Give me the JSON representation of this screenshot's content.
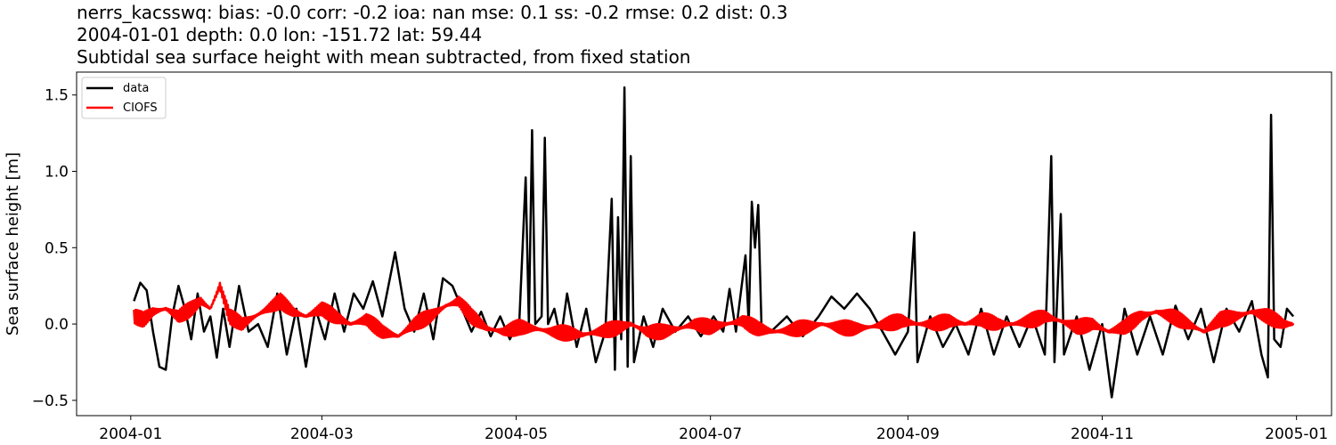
{
  "chart_data": {
    "type": "line",
    "title_lines": [
      "nerrs_kacsswq: bias: -0.0  corr: -0.2  ioa: nan  mse: 0.1  ss: -0.2  rmse: 0.2  dist: 0.3",
      "2004-01-01 depth: 0.0 lon: -151.72 lat: 59.44",
      "Subtidal sea surface height with mean subtracted, from fixed station"
    ],
    "xlabel": "",
    "ylabel": "Sea surface height [m]",
    "xlim": [
      "2003-12-15",
      "2005-01-12"
    ],
    "ylim": [
      -0.6,
      1.65
    ],
    "x_ticks": [
      "2004-01",
      "2004-03",
      "2004-05",
      "2004-07",
      "2004-09",
      "2004-11",
      "2005-01"
    ],
    "y_ticks": [
      {
        "value": -0.5,
        "label": "−0.5"
      },
      {
        "value": 0.0,
        "label": "0.0"
      },
      {
        "value": 0.5,
        "label": "0.5"
      },
      {
        "value": 1.0,
        "label": "1.0"
      },
      {
        "value": 1.5,
        "label": "1.5"
      }
    ],
    "grid": false,
    "legend_position": "top-left",
    "series": [
      {
        "name": "data",
        "color": "#000000",
        "points": [
          [
            "2004-01-02",
            0.15
          ],
          [
            "2004-01-04",
            0.27
          ],
          [
            "2004-01-06",
            0.22
          ],
          [
            "2004-01-08",
            -0.05
          ],
          [
            "2004-01-10",
            -0.28
          ],
          [
            "2004-01-12",
            -0.3
          ],
          [
            "2004-01-14",
            0.05
          ],
          [
            "2004-01-16",
            0.25
          ],
          [
            "2004-01-18",
            0.1
          ],
          [
            "2004-01-20",
            -0.1
          ],
          [
            "2004-01-22",
            0.2
          ],
          [
            "2004-01-24",
            -0.05
          ],
          [
            "2004-01-26",
            0.05
          ],
          [
            "2004-01-28",
            -0.22
          ],
          [
            "2004-01-30",
            0.1
          ],
          [
            "2004-02-01",
            -0.15
          ],
          [
            "2004-02-04",
            0.25
          ],
          [
            "2004-02-07",
            -0.05
          ],
          [
            "2004-02-10",
            0.0
          ],
          [
            "2004-02-13",
            -0.15
          ],
          [
            "2004-02-16",
            0.2
          ],
          [
            "2004-02-19",
            -0.2
          ],
          [
            "2004-02-22",
            0.1
          ],
          [
            "2004-02-25",
            -0.28
          ],
          [
            "2004-02-28",
            0.1
          ],
          [
            "2004-03-02",
            -0.1
          ],
          [
            "2004-03-05",
            0.2
          ],
          [
            "2004-03-08",
            -0.05
          ],
          [
            "2004-03-11",
            0.2
          ],
          [
            "2004-03-14",
            0.1
          ],
          [
            "2004-03-17",
            0.28
          ],
          [
            "2004-03-20",
            0.05
          ],
          [
            "2004-03-24",
            0.47
          ],
          [
            "2004-03-27",
            0.1
          ],
          [
            "2004-03-30",
            -0.05
          ],
          [
            "2004-04-02",
            0.2
          ],
          [
            "2004-04-05",
            -0.1
          ],
          [
            "2004-04-08",
            0.3
          ],
          [
            "2004-04-11",
            0.25
          ],
          [
            "2004-04-14",
            0.1
          ],
          [
            "2004-04-17",
            -0.05
          ],
          [
            "2004-04-20",
            0.08
          ],
          [
            "2004-04-23",
            -0.08
          ],
          [
            "2004-04-26",
            0.05
          ],
          [
            "2004-04-29",
            -0.1
          ],
          [
            "2004-05-02",
            0.02
          ],
          [
            "2004-05-04",
            0.96
          ],
          [
            "2004-05-05",
            0.0
          ],
          [
            "2004-05-06",
            1.27
          ],
          [
            "2004-05-07",
            0.0
          ],
          [
            "2004-05-09",
            0.05
          ],
          [
            "2004-05-10",
            1.22
          ],
          [
            "2004-05-11",
            0.0
          ],
          [
            "2004-05-13",
            0.1
          ],
          [
            "2004-05-15",
            -0.1
          ],
          [
            "2004-05-17",
            0.2
          ],
          [
            "2004-05-20",
            -0.15
          ],
          [
            "2004-05-23",
            0.1
          ],
          [
            "2004-05-26",
            -0.25
          ],
          [
            "2004-05-29",
            -0.05
          ],
          [
            "2004-05-31",
            0.82
          ],
          [
            "2004-06-01",
            -0.3
          ],
          [
            "2004-06-02",
            0.7
          ],
          [
            "2004-06-03",
            -0.1
          ],
          [
            "2004-06-04",
            1.55
          ],
          [
            "2004-06-05",
            -0.28
          ],
          [
            "2004-06-06",
            1.1
          ],
          [
            "2004-06-07",
            -0.25
          ],
          [
            "2004-06-10",
            0.05
          ],
          [
            "2004-06-13",
            -0.15
          ],
          [
            "2004-06-16",
            0.1
          ],
          [
            "2004-06-20",
            -0.05
          ],
          [
            "2004-06-24",
            0.05
          ],
          [
            "2004-06-28",
            -0.08
          ],
          [
            "2004-07-02",
            0.05
          ],
          [
            "2004-07-05",
            -0.05
          ],
          [
            "2004-07-07",
            0.23
          ],
          [
            "2004-07-09",
            -0.05
          ],
          [
            "2004-07-12",
            0.45
          ],
          [
            "2004-07-13",
            0.0
          ],
          [
            "2004-07-14",
            0.8
          ],
          [
            "2004-07-15",
            0.5
          ],
          [
            "2004-07-16",
            0.78
          ],
          [
            "2004-07-17",
            0.0
          ],
          [
            "2004-07-20",
            -0.05
          ],
          [
            "2004-07-25",
            0.05
          ],
          [
            "2004-07-30",
            -0.08
          ],
          [
            "2004-08-04",
            0.05
          ],
          [
            "2004-08-08",
            0.18
          ],
          [
            "2004-08-12",
            0.1
          ],
          [
            "2004-08-16",
            0.2
          ],
          [
            "2004-08-20",
            0.1
          ],
          [
            "2004-08-24",
            -0.05
          ],
          [
            "2004-08-28",
            -0.2
          ],
          [
            "2004-09-01",
            -0.05
          ],
          [
            "2004-09-03",
            0.6
          ],
          [
            "2004-09-04",
            -0.25
          ],
          [
            "2004-09-08",
            0.05
          ],
          [
            "2004-09-12",
            -0.15
          ],
          [
            "2004-09-16",
            0.0
          ],
          [
            "2004-09-20",
            -0.2
          ],
          [
            "2004-09-24",
            0.1
          ],
          [
            "2004-09-28",
            -0.2
          ],
          [
            "2004-10-02",
            0.05
          ],
          [
            "2004-10-06",
            -0.15
          ],
          [
            "2004-10-10",
            0.05
          ],
          [
            "2004-10-14",
            -0.2
          ],
          [
            "2004-10-16",
            1.1
          ],
          [
            "2004-10-17",
            -0.25
          ],
          [
            "2004-10-19",
            0.72
          ],
          [
            "2004-10-20",
            -0.2
          ],
          [
            "2004-10-24",
            0.05
          ],
          [
            "2004-10-28",
            -0.3
          ],
          [
            "2004-11-01",
            0.0
          ],
          [
            "2004-11-04",
            -0.48
          ],
          [
            "2004-11-08",
            0.1
          ],
          [
            "2004-11-12",
            -0.2
          ],
          [
            "2004-11-16",
            0.05
          ],
          [
            "2004-11-20",
            -0.2
          ],
          [
            "2004-11-24",
            0.12
          ],
          [
            "2004-11-28",
            -0.1
          ],
          [
            "2004-12-02",
            0.1
          ],
          [
            "2004-12-06",
            -0.25
          ],
          [
            "2004-12-10",
            0.1
          ],
          [
            "2004-12-14",
            -0.05
          ],
          [
            "2004-12-18",
            0.15
          ],
          [
            "2004-12-21",
            -0.2
          ],
          [
            "2004-12-23",
            -0.35
          ],
          [
            "2004-12-24",
            1.37
          ],
          [
            "2004-12-25",
            -0.1
          ],
          [
            "2004-12-27",
            -0.15
          ],
          [
            "2004-12-29",
            0.1
          ],
          [
            "2004-12-31",
            0.05
          ]
        ]
      },
      {
        "name": "CIOFS",
        "color": "#ff0000",
        "points": [
          [
            "2004-01-02",
            0.05
          ],
          [
            "2004-01-05",
            0.03
          ],
          [
            "2004-01-08",
            0.08
          ],
          [
            "2004-01-12",
            0.1
          ],
          [
            "2004-01-16",
            0.05
          ],
          [
            "2004-01-20",
            0.1
          ],
          [
            "2004-01-23",
            0.15
          ],
          [
            "2004-01-26",
            0.1
          ],
          [
            "2004-01-29",
            0.25
          ],
          [
            "2004-02-01",
            0.05
          ],
          [
            "2004-02-05",
            0.0
          ],
          [
            "2004-02-09",
            0.05
          ],
          [
            "2004-02-13",
            0.1
          ],
          [
            "2004-02-17",
            0.15
          ],
          [
            "2004-02-21",
            0.08
          ],
          [
            "2004-02-25",
            0.05
          ],
          [
            "2004-03-01",
            0.1
          ],
          [
            "2004-03-05",
            0.05
          ],
          [
            "2004-03-10",
            0.0
          ],
          [
            "2004-03-15",
            0.03
          ],
          [
            "2004-03-20",
            -0.05
          ],
          [
            "2004-03-25",
            -0.08
          ],
          [
            "2004-03-30",
            0.0
          ],
          [
            "2004-04-04",
            0.05
          ],
          [
            "2004-04-09",
            0.12
          ],
          [
            "2004-04-13",
            0.15
          ],
          [
            "2004-04-17",
            0.05
          ],
          [
            "2004-04-22",
            -0.03
          ],
          [
            "2004-04-27",
            -0.05
          ],
          [
            "2004-05-02",
            -0.02
          ],
          [
            "2004-05-07",
            -0.03
          ],
          [
            "2004-05-12",
            -0.05
          ],
          [
            "2004-05-17",
            -0.06
          ],
          [
            "2004-05-22",
            -0.07
          ],
          [
            "2004-05-27",
            -0.05
          ],
          [
            "2004-06-01",
            -0.03
          ],
          [
            "2004-06-06",
            0.0
          ],
          [
            "2004-06-11",
            -0.05
          ],
          [
            "2004-06-16",
            -0.05
          ],
          [
            "2004-06-21",
            -0.03
          ],
          [
            "2004-06-26",
            0.0
          ],
          [
            "2004-07-01",
            -0.02
          ],
          [
            "2004-07-06",
            0.0
          ],
          [
            "2004-07-11",
            0.02
          ],
          [
            "2004-07-16",
            -0.03
          ],
          [
            "2004-07-21",
            -0.05
          ],
          [
            "2004-07-26",
            -0.04
          ],
          [
            "2004-07-31",
            -0.02
          ],
          [
            "2004-08-05",
            0.0
          ],
          [
            "2004-08-10",
            -0.02
          ],
          [
            "2004-08-15",
            -0.03
          ],
          [
            "2004-08-20",
            -0.02
          ],
          [
            "2004-08-25",
            0.0
          ],
          [
            "2004-08-30",
            0.02
          ],
          [
            "2004-09-04",
            0.0
          ],
          [
            "2004-09-09",
            0.0
          ],
          [
            "2004-09-14",
            0.02
          ],
          [
            "2004-09-19",
            0.0
          ],
          [
            "2004-09-24",
            0.03
          ],
          [
            "2004-09-29",
            0.0
          ],
          [
            "2004-10-04",
            0.0
          ],
          [
            "2004-10-09",
            0.02
          ],
          [
            "2004-10-14",
            0.05
          ],
          [
            "2004-10-19",
            0.02
          ],
          [
            "2004-10-24",
            -0.02
          ],
          [
            "2004-10-29",
            0.0
          ],
          [
            "2004-11-03",
            -0.05
          ],
          [
            "2004-11-08",
            -0.02
          ],
          [
            "2004-11-13",
            0.05
          ],
          [
            "2004-11-18",
            0.08
          ],
          [
            "2004-11-23",
            0.05
          ],
          [
            "2004-11-28",
            0.0
          ],
          [
            "2004-12-03",
            -0.05
          ],
          [
            "2004-12-08",
            0.03
          ],
          [
            "2004-12-13",
            0.05
          ],
          [
            "2004-12-18",
            0.08
          ],
          [
            "2004-12-23",
            0.05
          ],
          [
            "2004-12-28",
            0.0
          ],
          [
            "2004-12-31",
            0.0
          ]
        ],
        "tidal_ripple_amplitude_m": 0.05
      }
    ]
  }
}
